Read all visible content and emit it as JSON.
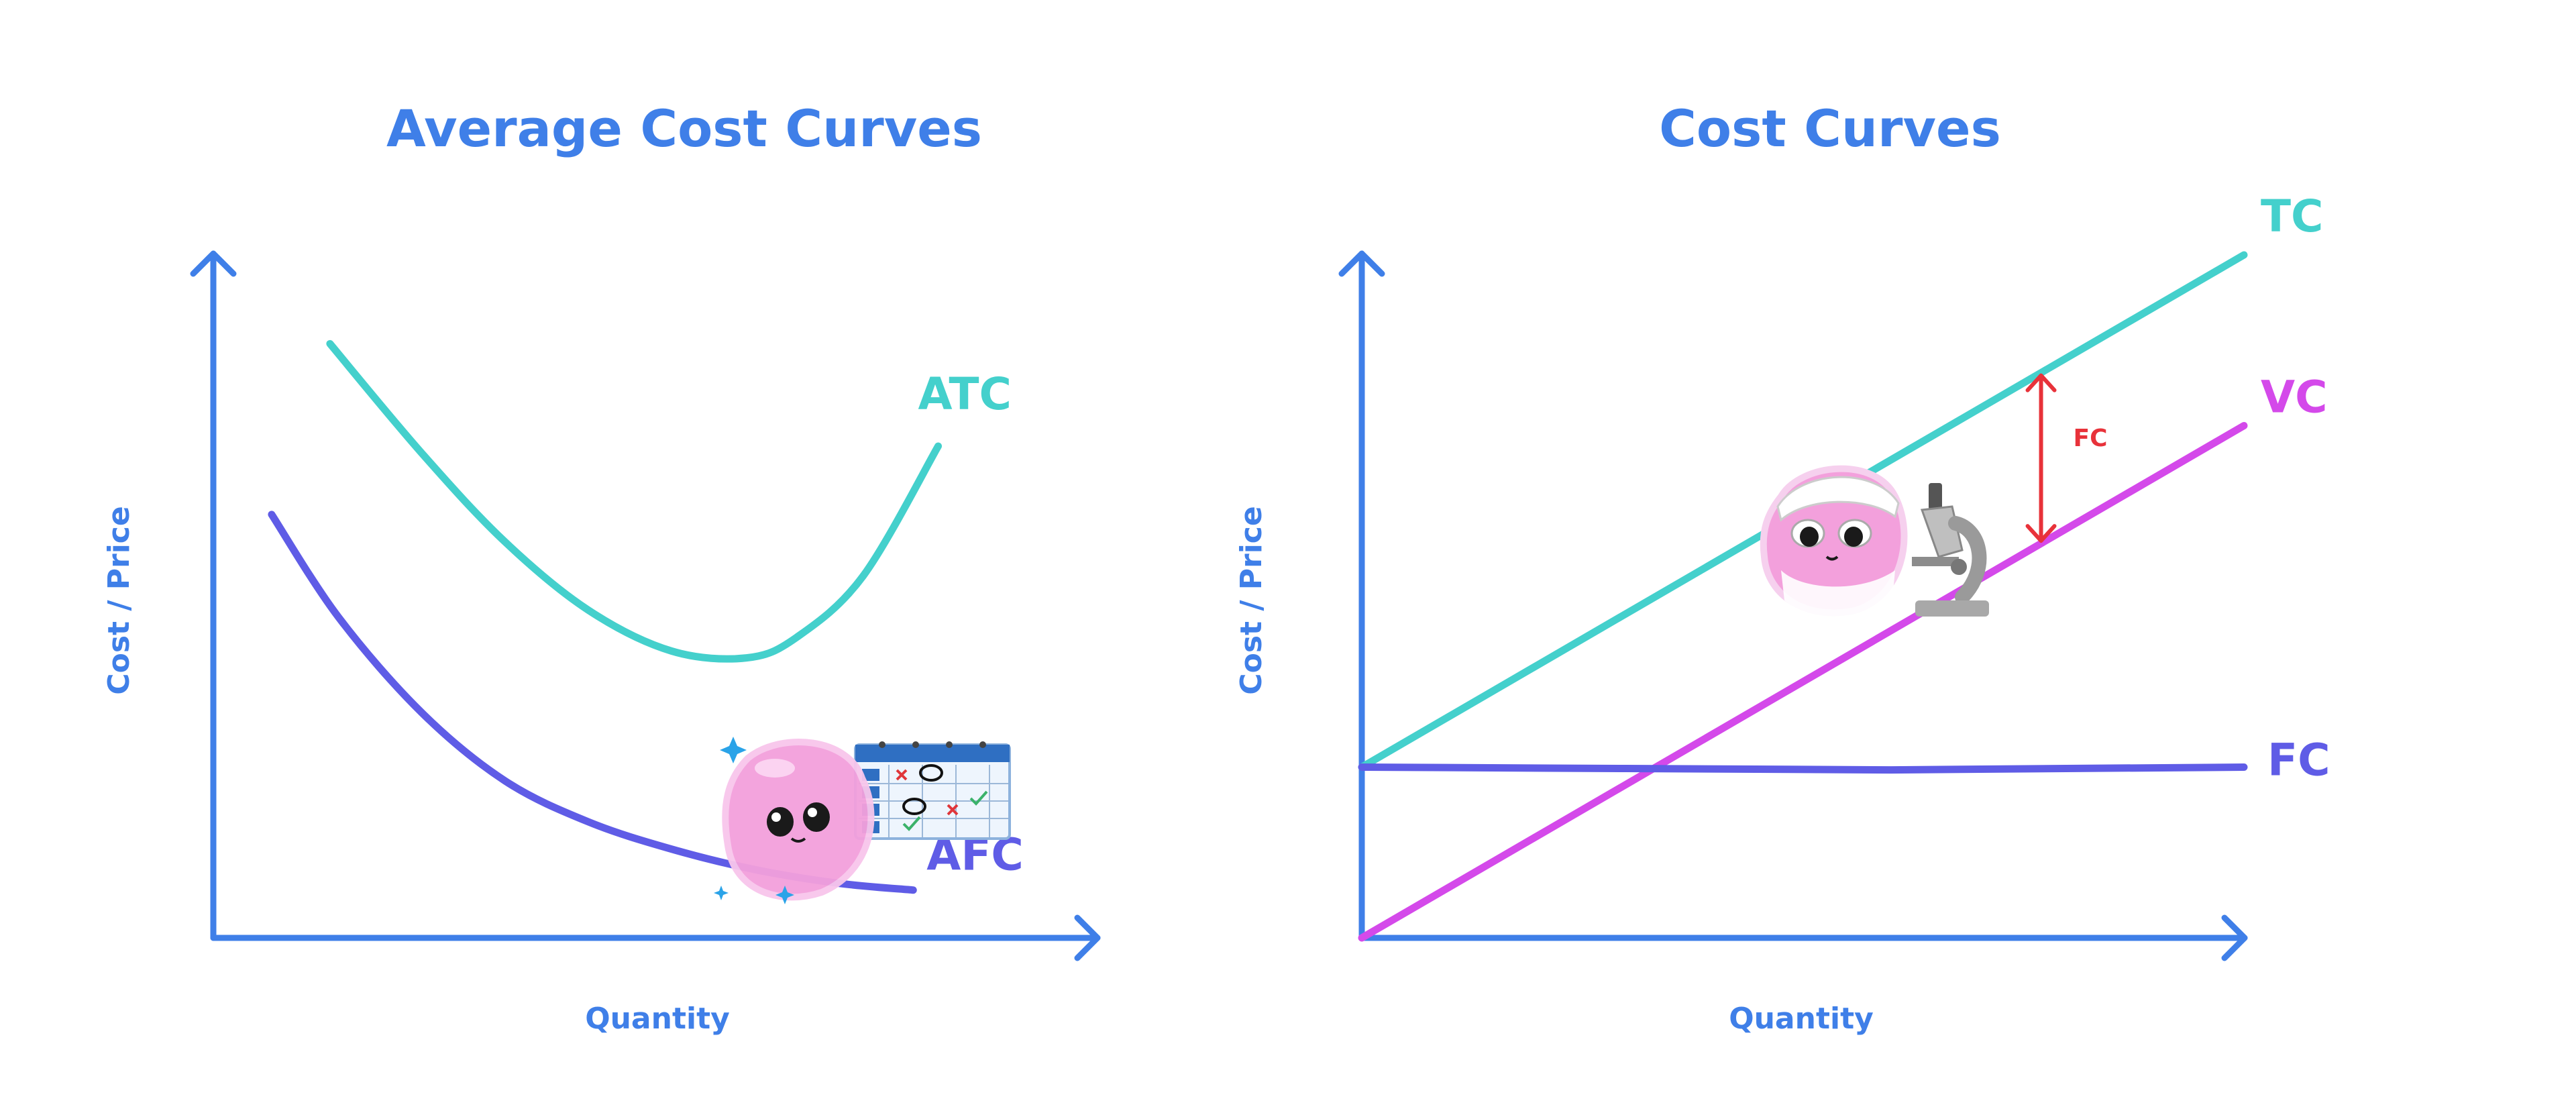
{
  "colors": {
    "axis": "#3f7fe8",
    "title": "#3f7fe8",
    "atc": "#44d0cc",
    "afc": "#5f5ce6",
    "tc": "#44d0cc",
    "vc": "#d449ea",
    "fc": "#5f5ce6",
    "fc_gap": "#e8323a",
    "mascot": "#f3a0dc",
    "mascot_dark": "#1a1a1a"
  },
  "chart_data": [
    {
      "type": "line",
      "title": "Average Cost Curves",
      "xlabel": "Quantity",
      "ylabel": "Cost / Price",
      "xlim": [
        0,
        100
      ],
      "ylim": [
        0,
        100
      ],
      "grid": false,
      "axis_ticks": false,
      "series": [
        {
          "name": "ATC",
          "color_key": "atc",
          "points": [
            [
              14,
              87
            ],
            [
              25,
              71
            ],
            [
              35,
              58
            ],
            [
              45,
              48
            ],
            [
              55,
              42
            ],
            [
              64,
              41
            ],
            [
              70,
              44
            ],
            [
              78,
              53
            ],
            [
              87,
              72
            ]
          ]
        },
        {
          "name": "AFC",
          "color_key": "afc",
          "points": [
            [
              7,
              62
            ],
            [
              15,
              47
            ],
            [
              25,
              33
            ],
            [
              35,
              23
            ],
            [
              45,
              17
            ],
            [
              55,
              13
            ],
            [
              65,
              10
            ],
            [
              75,
              8
            ],
            [
              84,
              7
            ]
          ]
        }
      ],
      "decoration": "mascot-with-calendar"
    },
    {
      "type": "line",
      "title": "Cost Curves",
      "xlabel": "Quantity",
      "ylabel": "Cost / Price",
      "xlim": [
        0,
        100
      ],
      "ylim": [
        0,
        100
      ],
      "grid": false,
      "axis_ticks": false,
      "series": [
        {
          "name": "TC",
          "color_key": "tc",
          "points": [
            [
              0,
              25
            ],
            [
              100,
              100
            ]
          ]
        },
        {
          "name": "VC",
          "color_key": "vc",
          "points": [
            [
              0,
              0
            ],
            [
              100,
              75
            ]
          ]
        },
        {
          "name": "FC",
          "color_key": "fc",
          "points": [
            [
              0,
              25
            ],
            [
              30,
              24.8
            ],
            [
              60,
              24.6
            ],
            [
              100,
              25
            ]
          ]
        }
      ],
      "annotations": [
        {
          "label": "FC",
          "type": "double-arrow",
          "x": 77,
          "y_from": 57.75,
          "y_to": 82.75,
          "color_key": "fc_gap"
        }
      ],
      "decoration": "mascot-with-microscope"
    }
  ]
}
